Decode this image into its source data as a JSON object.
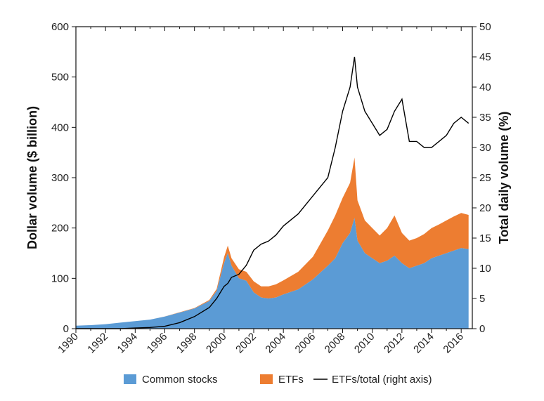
{
  "chart_data": {
    "type": "area",
    "xlabel": "",
    "ylabel": "Dollar volume ($ billion)",
    "y2label": "Total daily volume (%)",
    "xlim": [
      1990,
      2016.75
    ],
    "ylim": [
      0,
      600
    ],
    "y2lim": [
      0,
      50
    ],
    "x_ticks": [
      1990,
      1992,
      1994,
      1996,
      1998,
      2000,
      2002,
      2004,
      2006,
      2008,
      2010,
      2012,
      2014,
      2016
    ],
    "y_ticks": [
      0,
      100,
      200,
      300,
      400,
      500,
      600
    ],
    "y2_ticks": [
      0,
      5,
      10,
      15,
      20,
      25,
      30,
      35,
      40,
      45,
      50
    ],
    "grid": false,
    "legend_position": "bottom-center",
    "colors": {
      "common": "#5b9bd5",
      "etf": "#ed7d31",
      "ratio": "#000000"
    },
    "x": [
      1990,
      1991,
      1992,
      1993,
      1994,
      1995,
      1996,
      1997,
      1998,
      1999,
      1999.5,
      2000,
      2000.25,
      2000.5,
      2001,
      2001.5,
      2002,
      2002.5,
      2003,
      2003.5,
      2004,
      2005,
      2006,
      2007,
      2007.5,
      2008,
      2008.5,
      2008.8,
      2009,
      2009.5,
      2010,
      2010.5,
      2011,
      2011.5,
      2012,
      2012.5,
      2013,
      2013.5,
      2014,
      2014.5,
      2015,
      2015.5,
      2016,
      2016.5
    ],
    "series": [
      {
        "name": "Common stocks",
        "type": "area",
        "axis": "left",
        "values": [
          6,
          7,
          9,
          12,
          15,
          18,
          24,
          32,
          40,
          55,
          75,
          130,
          150,
          125,
          100,
          95,
          72,
          62,
          60,
          62,
          68,
          78,
          98,
          125,
          140,
          170,
          190,
          220,
          175,
          150,
          140,
          130,
          135,
          145,
          130,
          120,
          125,
          130,
          140,
          145,
          150,
          155,
          160,
          158
        ]
      },
      {
        "name": "ETFs",
        "type": "area",
        "axis": "left",
        "stacked_on": "Common stocks",
        "values": [
          0,
          0,
          0,
          0,
          0,
          0,
          0.3,
          0.6,
          1,
          2,
          4,
          12,
          15,
          15,
          18,
          18,
          22,
          22,
          24,
          26,
          28,
          35,
          45,
          70,
          85,
          90,
          100,
          120,
          80,
          65,
          60,
          55,
          65,
          80,
          60,
          55,
          55,
          58,
          60,
          62,
          65,
          68,
          70,
          68
        ]
      },
      {
        "name": "ETFs/total (right axis)",
        "type": "line",
        "axis": "right",
        "values": [
          0,
          0,
          0,
          0,
          0.1,
          0.2,
          0.4,
          1,
          2,
          3.5,
          5,
          7,
          7.5,
          8.5,
          9,
          10.5,
          13,
          14,
          14.5,
          15.5,
          17,
          19,
          22,
          25,
          30,
          36,
          40,
          45,
          40,
          36,
          34,
          32,
          33,
          36,
          38,
          31,
          31,
          30,
          30,
          31,
          32,
          34,
          35,
          34
        ]
      }
    ]
  }
}
